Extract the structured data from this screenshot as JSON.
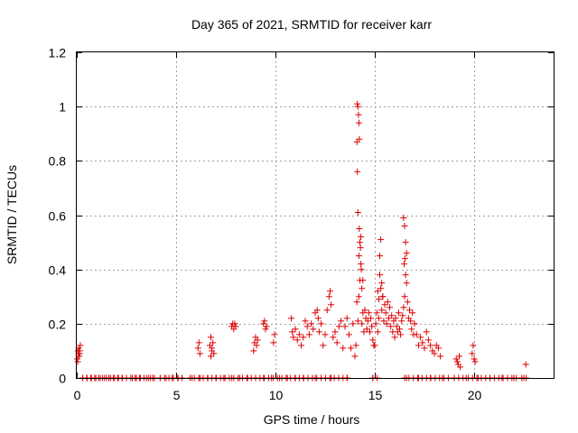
{
  "chart_data": {
    "type": "scatter",
    "title": "Day 365 of 2021, SRMTID for receiver karr",
    "xlabel": "GPS time / hours",
    "ylabel": "SRMTID / TECUs",
    "xlim": [
      0,
      24
    ],
    "ylim": [
      0,
      1.2
    ],
    "xticks": [
      0,
      5,
      10,
      15,
      20
    ],
    "xtick_labels": [
      "0",
      "5",
      "10",
      "15",
      "20"
    ],
    "yticks": [
      0,
      0.2,
      0.4,
      0.6,
      0.8,
      1,
      1.2
    ],
    "ytick_labels": [
      "0",
      "0.2",
      "0.4",
      "0.6",
      "0.8",
      "1",
      "1.2"
    ],
    "grid": true,
    "marker": "+",
    "colors": {
      "series": "#dd0000",
      "grid": "#a0a0a0",
      "axis": "#000000"
    },
    "series": [
      {
        "name": "SRMTID",
        "x": [
          0.02,
          0.05,
          0.08,
          0.1,
          0.12,
          0.15,
          0.18,
          0.05,
          0.1,
          0.15,
          6.1,
          6.15,
          6.2,
          6.7,
          6.75,
          6.8,
          6.85,
          6.9,
          6.75,
          6.8,
          7.8,
          7.85,
          7.9,
          7.95,
          8.0,
          8.9,
          8.95,
          9.0,
          9.05,
          9.1,
          9.4,
          9.45,
          9.5,
          9.55,
          9.9,
          9.95,
          10.8,
          10.85,
          10.9,
          11.0,
          11.1,
          11.2,
          11.3,
          11.4,
          11.5,
          11.6,
          11.7,
          11.8,
          11.9,
          12.0,
          12.1,
          12.15,
          12.2,
          12.3,
          12.4,
          12.5,
          12.6,
          12.7,
          12.75,
          12.8,
          12.9,
          13.0,
          13.1,
          13.2,
          13.3,
          13.4,
          13.5,
          13.6,
          13.7,
          13.8,
          13.9,
          14.0,
          14.05,
          14.1,
          14.15,
          14.2,
          14.25,
          14.3,
          14.35,
          14.4,
          14.45,
          14.5,
          14.55,
          14.6,
          14.65,
          14.7,
          14.75,
          14.8,
          14.85,
          14.9,
          14.95,
          14.12,
          14.15,
          14.18,
          14.2,
          14.22,
          14.1,
          14.12,
          14.15,
          14.2,
          14.25,
          14.3,
          14.22,
          14.28,
          14.32,
          14.35,
          14.4,
          15.0,
          15.05,
          15.1,
          15.15,
          15.2,
          15.25,
          15.3,
          15.35,
          15.4,
          15.45,
          15.5,
          15.55,
          15.6,
          15.65,
          15.7,
          15.75,
          15.8,
          15.85,
          15.9,
          15.95,
          15.3,
          15.25,
          15.35,
          15.4,
          15.2,
          15.15,
          16.0,
          16.05,
          16.1,
          16.15,
          16.2,
          16.25,
          16.3,
          16.35,
          16.4,
          16.45,
          16.5,
          16.55,
          16.6,
          16.65,
          16.7,
          16.75,
          16.8,
          16.85,
          16.9,
          16.95,
          16.45,
          16.5,
          16.55,
          16.6,
          16.48,
          16.52,
          17.0,
          17.1,
          17.2,
          17.3,
          17.4,
          17.5,
          17.6,
          17.7,
          17.8,
          17.9,
          18.0,
          18.1,
          18.2,
          18.3,
          19.1,
          19.15,
          19.2,
          19.25,
          19.3,
          19.9,
          19.95,
          20.0,
          20.05,
          22.6,
          0.3,
          0.5,
          0.7,
          0.9,
          1.1,
          1.3,
          1.5,
          1.7,
          1.9,
          2.1,
          2.3,
          2.5,
          2.8,
          3.0,
          3.2,
          3.5,
          3.7,
          3.9,
          4.2,
          4.5,
          4.8,
          5.1,
          5.8,
          6.2,
          6.6,
          7.0,
          7.4,
          7.8,
          8.2,
          8.6,
          9.0,
          9.4,
          9.8,
          10.2,
          10.6,
          11.0,
          11.4,
          12.0,
          12.8,
          13.6,
          14.9,
          16.6,
          17.2,
          17.8,
          18.4,
          19.0,
          19.6,
          20.2,
          20.8,
          21.4,
          22.0,
          22.5
        ],
        "y": [
          0.07,
          0.1,
          0.09,
          0.11,
          0.08,
          0.1,
          0.12,
          0.06,
          0.08,
          0.09,
          0.11,
          0.13,
          0.09,
          0.12,
          0.15,
          0.1,
          0.13,
          0.09,
          0.08,
          0.11,
          0.19,
          0.2,
          0.18,
          0.2,
          0.19,
          0.1,
          0.13,
          0.15,
          0.12,
          0.14,
          0.2,
          0.21,
          0.18,
          0.19,
          0.13,
          0.16,
          0.22,
          0.17,
          0.15,
          0.18,
          0.14,
          0.16,
          0.12,
          0.15,
          0.21,
          0.19,
          0.16,
          0.2,
          0.18,
          0.24,
          0.25,
          0.22,
          0.17,
          0.2,
          0.12,
          0.16,
          0.25,
          0.3,
          0.32,
          0.27,
          0.15,
          0.17,
          0.13,
          0.19,
          0.21,
          0.11,
          0.19,
          0.22,
          0.16,
          0.11,
          0.2,
          0.08,
          0.12,
          0.28,
          0.21,
          0.3,
          0.36,
          0.42,
          0.2,
          0.24,
          0.17,
          0.25,
          0.22,
          0.18,
          0.21,
          0.24,
          0.17,
          0.22,
          0.19,
          0.14,
          0.12,
          1.01,
          1.0,
          0.97,
          0.94,
          0.88,
          0.87,
          0.76,
          0.61,
          0.45,
          0.5,
          0.52,
          0.55,
          0.48,
          0.4,
          0.33,
          0.36,
          0.12,
          0.2,
          0.24,
          0.17,
          0.22,
          0.38,
          0.33,
          0.25,
          0.3,
          0.21,
          0.27,
          0.24,
          0.2,
          0.28,
          0.22,
          0.26,
          0.19,
          0.23,
          0.17,
          0.21,
          0.51,
          0.45,
          0.35,
          0.3,
          0.29,
          0.32,
          0.15,
          0.22,
          0.19,
          0.17,
          0.24,
          0.18,
          0.16,
          0.21,
          0.23,
          0.26,
          0.3,
          0.38,
          0.35,
          0.28,
          0.22,
          0.25,
          0.21,
          0.18,
          0.24,
          0.16,
          0.59,
          0.56,
          0.5,
          0.46,
          0.42,
          0.44,
          0.2,
          0.16,
          0.12,
          0.15,
          0.13,
          0.11,
          0.17,
          0.14,
          0.12,
          0.1,
          0.09,
          0.12,
          0.11,
          0.08,
          0.07,
          0.06,
          0.05,
          0.08,
          0.04,
          0.09,
          0.12,
          0.07,
          0.06,
          0.05,
          0,
          0,
          0,
          0,
          0,
          0,
          0,
          0,
          0,
          0,
          0,
          0,
          0,
          0,
          0,
          0,
          0,
          0,
          0,
          0,
          0,
          0,
          0,
          0,
          0,
          0,
          0,
          0,
          0,
          0,
          0,
          0,
          0,
          0,
          0,
          0,
          0,
          0,
          0,
          0,
          0,
          0,
          0,
          0,
          0,
          0,
          0,
          0,
          0,
          0,
          0,
          0
        ]
      }
    ]
  }
}
